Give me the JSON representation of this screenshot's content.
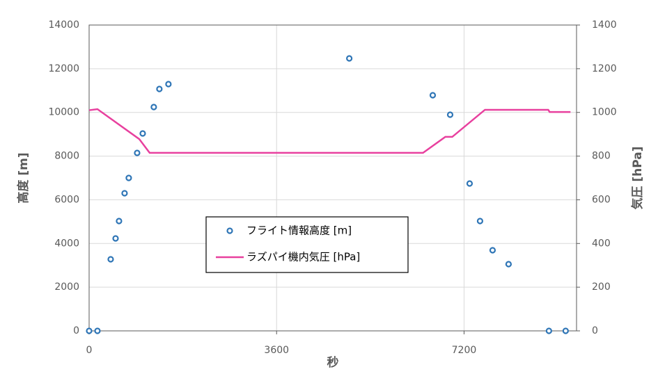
{
  "chart_data": {
    "type": "scatter-line",
    "x_label": "秒",
    "y_label": "高度 [m]",
    "y2_label": "気圧 [hPa]",
    "xlim": [
      0,
      9360
    ],
    "xticks": [
      0,
      3600,
      7200
    ],
    "ylim": [
      0,
      14000
    ],
    "yticks": [
      0,
      2000,
      4000,
      6000,
      8000,
      10000,
      12000,
      14000
    ],
    "y2lim": [
      0,
      1400
    ],
    "y2ticks": [
      0,
      200,
      400,
      600,
      800,
      1000,
      1200,
      1400
    ],
    "grid": true,
    "legend": "center",
    "series": [
      {
        "name": "フライト情報高度 [m]",
        "color": "#2e75b6",
        "kind": "scatter",
        "x": [
          0,
          160,
          414,
          508,
          574,
          681,
          761,
          922,
          1029,
          1242,
          1349,
          1523,
          4996,
          6599,
          6933,
          7307,
          7507,
          7748,
          8055,
          8830,
          9151
        ],
        "values": [
          0,
          0,
          3277,
          4232,
          5027,
          6300,
          7000,
          8145,
          9036,
          10245,
          11072,
          11295,
          12472,
          10786,
          9895,
          6745,
          5027,
          3691,
          3054,
          0,
          0
        ]
      },
      {
        "name": "ラズパイ機内気圧 [hPa]",
        "color": "#e8409e",
        "kind": "line",
        "axis": "y2",
        "x": [
          0,
          160,
          962,
          1162,
          6412,
          6840,
          6973,
          7601,
          8817,
          8843,
          9244
        ],
        "values": [
          1010,
          1015,
          878,
          815,
          815,
          888,
          888,
          1012,
          1012,
          1002,
          1002
        ]
      }
    ]
  }
}
